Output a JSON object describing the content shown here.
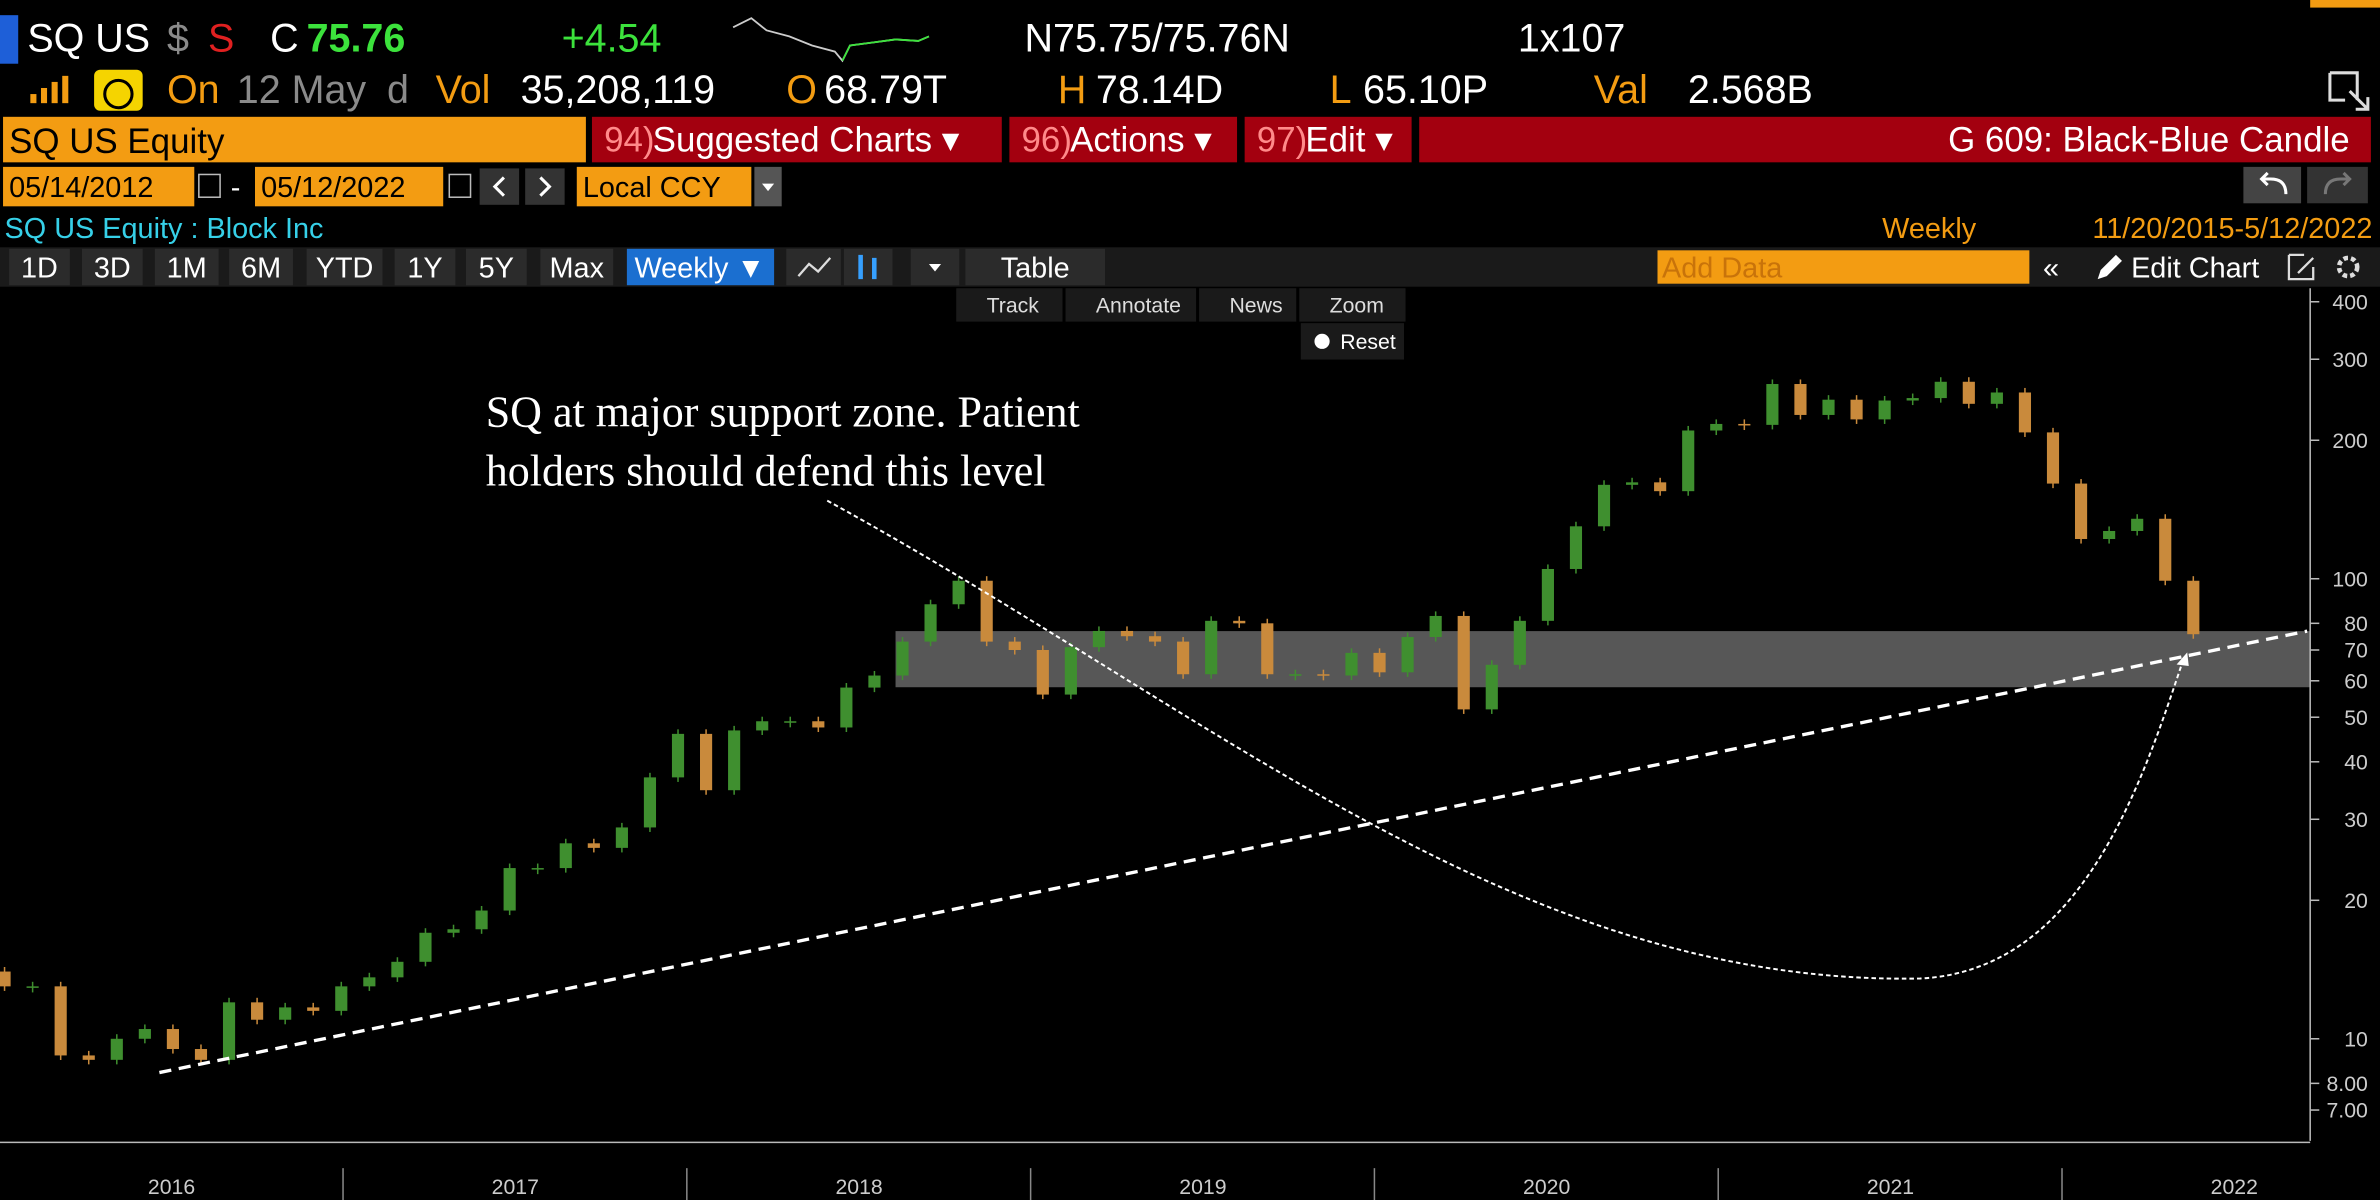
{
  "quote": {
    "ticker": "SQ US",
    "currency": "$",
    "flag": "S",
    "last_label": "C",
    "last": "75.76",
    "change": "+4.54",
    "bid_ask": "N75.75/75.76N",
    "size": "1x107"
  },
  "session": {
    "on_label": "On",
    "date": "12 May",
    "period": "d",
    "vol_label": "Vol",
    "vol": "35,208,119",
    "open_label": "O",
    "open": "68.79T",
    "high_label": "H",
    "high": "78.14D",
    "low_label": "L",
    "low": "65.10P",
    "val_label": "Val",
    "val": "2.568B"
  },
  "menu": {
    "security": "SQ US Equity",
    "items": [
      {
        "num": "94)",
        "label": "Suggested Charts ▾"
      },
      {
        "num": "96)",
        "label": "Actions ▾"
      },
      {
        "num": "97)",
        "label": "Edit ▾"
      }
    ],
    "template": "G 609: Black-Blue Candle"
  },
  "range": {
    "start": "05/14/2012",
    "separator": "-",
    "end": "05/12/2022",
    "currency": "Local CCY"
  },
  "chart_header": {
    "name": "SQ US Equity : Block Inc",
    "frequency": "Weekly",
    "period": "11/20/2015-5/12/2022"
  },
  "toolbar": {
    "periods": [
      "1D",
      "3D",
      "1M",
      "6M",
      "YTD",
      "1Y",
      "5Y",
      "Max"
    ],
    "frequency": "Weekly ▼",
    "table": "Table",
    "add_data": "Add Data",
    "edit_chart": "Edit Chart"
  },
  "chart_tools": [
    "Track",
    "Annotate",
    "News",
    "Zoom"
  ],
  "reset": "Reset",
  "chart_data": {
    "type": "candlestick",
    "annotation": [
      "SQ at major support zone. Patient",
      "holders should defend this level"
    ],
    "up_color": "#3f8f2f",
    "down_color": "#c98a3c",
    "log_scale": true,
    "ylim": [
      6,
      428
    ],
    "yticks": [
      400,
      300,
      200,
      100,
      80,
      70,
      60,
      50,
      40,
      30,
      20,
      10,
      {
        "value": 8,
        "label": "8.00"
      },
      {
        "value": 7,
        "label": "7.00"
      }
    ],
    "year_labels": [
      "2016",
      "2017",
      "2018",
      "2019",
      "2020",
      "2021",
      "2022"
    ],
    "open": [
      14,
      13,
      13,
      9.2,
      9,
      10,
      10.5,
      9.5,
      9,
      12,
      11,
      11.7,
      11.5,
      13,
      13.6,
      14.7,
      17,
      17.3,
      19,
      23.5,
      23.5,
      26.6,
      26,
      28.8,
      37,
      46,
      34.7,
      46.8,
      49,
      49,
      47.5,
      58,
      61.6,
      73,
      88,
      99,
      73,
      70,
      56,
      71,
      77,
      75,
      73,
      62,
      81,
      80,
      62,
      62,
      61.6,
      69,
      62.6,
      74.7,
      83,
      52,
      65,
      81,
      105,
      130,
      160,
      162,
      155,
      210,
      217,
      216,
      265,
      227,
      245,
      222,
      244,
      247,
      268,
      240,
      254,
      208,
      161,
      122,
      127,
      135,
      99
    ],
    "close": [
      13,
      13,
      9.2,
      9,
      10,
      10.5,
      9.5,
      9,
      12,
      11,
      11.7,
      11.5,
      13,
      13.6,
      14.7,
      17,
      17.3,
      19,
      23.5,
      23.5,
      26.6,
      26,
      28.8,
      37,
      46,
      34.7,
      46.8,
      49,
      49,
      47.5,
      58,
      61.6,
      73,
      88,
      99,
      73,
      70,
      56,
      71,
      77,
      75,
      73,
      62,
      81,
      80,
      62,
      62,
      61.6,
      69,
      62.6,
      74.7,
      83,
      52,
      65,
      81,
      105,
      130,
      160,
      162,
      155,
      210,
      217,
      216,
      265,
      227,
      245,
      222,
      244,
      247,
      268,
      240,
      254,
      208,
      161,
      122,
      127,
      135,
      99,
      75.76
    ]
  }
}
